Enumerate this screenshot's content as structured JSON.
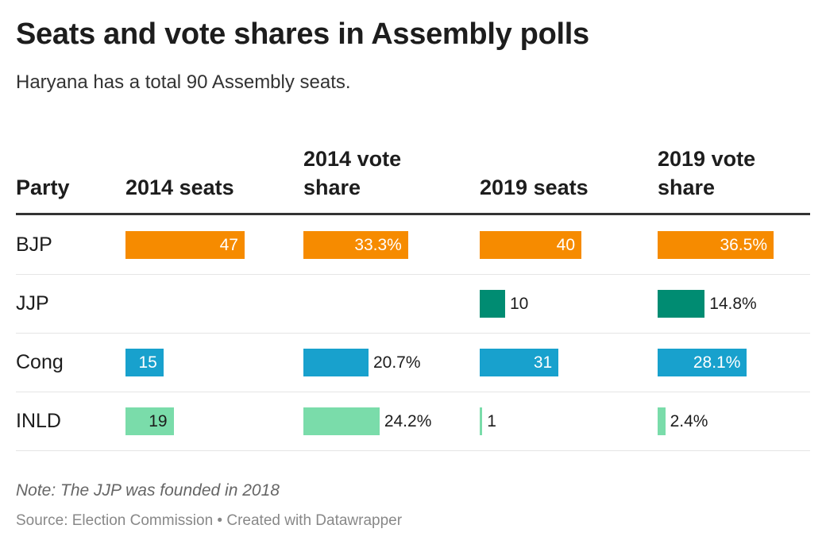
{
  "title": "Seats and vote shares in Assembly polls",
  "subtitle": "Haryana has a total 90 Assembly seats.",
  "note": "Note: The JJP was founded in 2018",
  "source": "Source: Election Commission • Created with Datawrapper",
  "colors": {
    "BJP": "#f68b00",
    "JJP": "#008c72",
    "Cong": "#18a1cd",
    "INLD": "#7adcaa"
  },
  "chart_data": {
    "type": "table",
    "columns": [
      "Party",
      "2014 seats",
      "2014 vote share",
      "2019 seats",
      "2019 vote share"
    ],
    "rows": [
      {
        "party": "BJP",
        "values": [
          47,
          33.3,
          40,
          36.5
        ],
        "labels": [
          "47",
          "33.3%",
          "40",
          "36.5%"
        ]
      },
      {
        "party": "JJP",
        "values": [
          null,
          null,
          10,
          14.8
        ],
        "labels": [
          "",
          "",
          "10",
          "14.8%"
        ]
      },
      {
        "party": "Cong",
        "values": [
          15,
          20.7,
          31,
          28.1
        ],
        "labels": [
          "15",
          "20.7%",
          "31",
          "28.1%"
        ]
      },
      {
        "party": "INLD",
        "values": [
          19,
          24.2,
          1,
          2.4
        ],
        "labels": [
          "19",
          "24.2%",
          "1",
          "2.4%"
        ]
      }
    ]
  }
}
